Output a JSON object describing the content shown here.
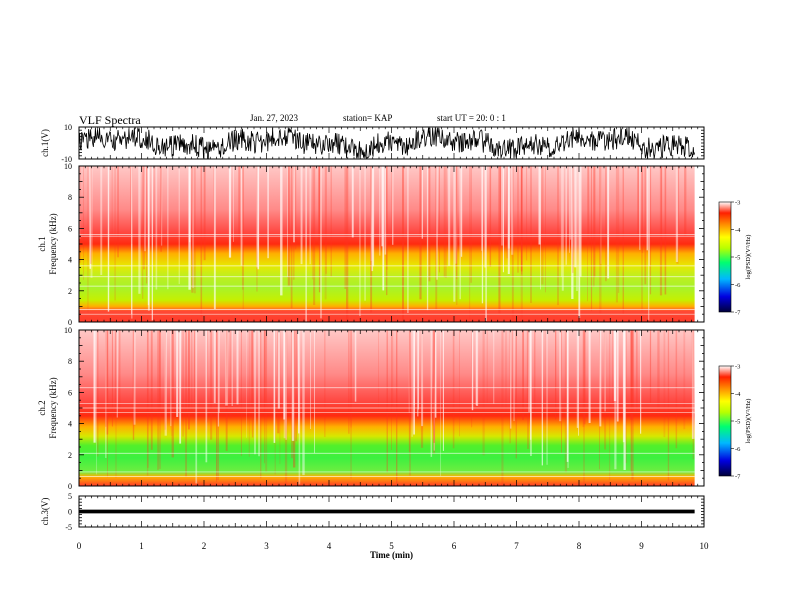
{
  "header": {
    "title": "VLF Spectra",
    "date": "Jan. 27, 2023",
    "station": "station= KAP",
    "start": "start  UT =   20: 0  : 1"
  },
  "chart_data": [
    {
      "type": "line",
      "panel": "ch1-waveform",
      "ylabel": "ch.1(V)",
      "yticks": [
        "10",
        "-10"
      ],
      "ylim": [
        -10,
        10
      ],
      "color": "#000000"
    },
    {
      "type": "heatmap",
      "panel": "ch1-spectrogram",
      "ylabel": "ch.1\nFrequency (kHz)",
      "ylim": [
        0,
        10
      ],
      "yticks": [
        "0",
        "2",
        "4",
        "6",
        "8",
        "10"
      ],
      "z_label": "log(PSD)(V²/Hz)",
      "z_range": [
        -7,
        -3
      ],
      "z_ticks": [
        "-3",
        "-4",
        "-5",
        "-6",
        "-7"
      ],
      "bands_khz": [
        {
          "from": 0.0,
          "to": 0.8,
          "level": -4.0
        },
        {
          "from": 0.8,
          "to": 1.3,
          "level": -4.4
        },
        {
          "from": 1.3,
          "to": 3.6,
          "level": -4.8
        },
        {
          "from": 3.6,
          "to": 4.8,
          "level": -4.3
        },
        {
          "from": 4.8,
          "to": 5.5,
          "level": -3.9
        },
        {
          "from": 5.5,
          "to": 10.0,
          "level": -3.2
        }
      ]
    },
    {
      "type": "heatmap",
      "panel": "ch2-spectrogram",
      "ylabel": "ch.2\nFrequency (kHz)",
      "ylim": [
        0,
        10
      ],
      "yticks": [
        "0",
        "2",
        "4",
        "6",
        "8",
        "10"
      ],
      "z_label": "log(PSD)(V²/Hz)",
      "z_range": [
        -7,
        -3
      ],
      "z_ticks": [
        "-3",
        "-4",
        "-5",
        "-6",
        "-7"
      ],
      "bands_khz": [
        {
          "from": 0.0,
          "to": 0.9,
          "level": -4.2
        },
        {
          "from": 0.9,
          "to": 2.8,
          "level": -5.1
        },
        {
          "from": 2.8,
          "to": 3.6,
          "level": -4.5
        },
        {
          "from": 3.6,
          "to": 4.6,
          "level": -4.0
        },
        {
          "from": 4.6,
          "to": 10.0,
          "level": -3.2
        }
      ]
    },
    {
      "type": "line",
      "panel": "ch3-waveform",
      "ylabel": "ch.3(V)",
      "yticks": [
        "5",
        "0",
        "-5"
      ],
      "ylim": [
        -5,
        5
      ],
      "color": "#000000"
    }
  ],
  "xaxis": {
    "label": "Time (min)",
    "range": [
      0,
      10
    ],
    "data_end": 9.85,
    "ticks": [
      "0",
      "1",
      "2",
      "3",
      "4",
      "5",
      "6",
      "7",
      "8",
      "9",
      "10"
    ]
  }
}
